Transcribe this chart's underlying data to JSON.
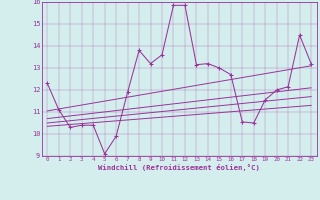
{
  "xlabel": "Windchill (Refroidissement éolien,°C)",
  "background_color": "#d4eeed",
  "line_color": "#993399",
  "xlim": [
    -0.5,
    23.5
  ],
  "ylim": [
    9,
    16
  ],
  "xtick_labels": [
    "0",
    "1",
    "2",
    "3",
    "4",
    "5",
    "6",
    "7",
    "8",
    "9",
    "10",
    "11",
    "12",
    "13",
    "14",
    "15",
    "16",
    "17",
    "18",
    "19",
    "20",
    "21",
    "22",
    "23"
  ],
  "ytick_values": [
    9,
    10,
    11,
    12,
    13,
    14,
    15,
    16
  ],
  "series": [
    [
      0,
      12.3
    ],
    [
      1,
      11.1
    ],
    [
      2,
      10.3
    ],
    [
      3,
      10.4
    ],
    [
      4,
      10.4
    ],
    [
      5,
      9.1
    ],
    [
      6,
      9.9
    ],
    [
      7,
      11.9
    ],
    [
      8,
      13.8
    ],
    [
      9,
      13.2
    ],
    [
      10,
      13.6
    ],
    [
      11,
      15.85
    ],
    [
      12,
      15.85
    ],
    [
      13,
      13.15
    ],
    [
      14,
      13.2
    ],
    [
      15,
      13.0
    ],
    [
      16,
      12.7
    ],
    [
      17,
      10.55
    ],
    [
      18,
      10.5
    ],
    [
      19,
      11.55
    ],
    [
      20,
      12.0
    ],
    [
      21,
      12.15
    ],
    [
      22,
      14.5
    ],
    [
      23,
      13.2
    ]
  ],
  "regression_lines": [
    {
      "x": [
        0,
        23
      ],
      "y": [
        10.35,
        11.3
      ]
    },
    {
      "x": [
        0,
        23
      ],
      "y": [
        10.5,
        11.7
      ]
    },
    {
      "x": [
        0,
        23
      ],
      "y": [
        10.7,
        12.1
      ]
    },
    {
      "x": [
        0,
        23
      ],
      "y": [
        11.05,
        13.1
      ]
    }
  ]
}
